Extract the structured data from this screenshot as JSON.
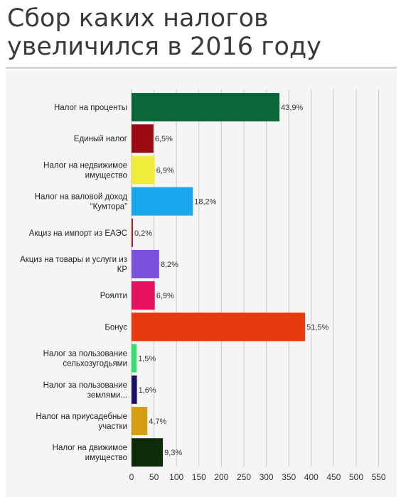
{
  "title": "Сбор каких налогов увеличился в 2016 году",
  "chart_data": {
    "type": "bar",
    "orientation": "horizontal",
    "title": "",
    "xlabel": "",
    "ylabel": "",
    "xlim": [
      0,
      550
    ],
    "xticks": [
      0,
      50,
      100,
      150,
      200,
      250,
      300,
      350,
      400,
      450,
      500,
      550
    ],
    "grid": true,
    "categories": [
      [
        "Налог на проценты"
      ],
      [
        "Единый налог"
      ],
      [
        "Налог на недвижимое",
        "имущество"
      ],
      [
        "Налог на валовой доход",
        "“Кумтора”"
      ],
      [
        "Акциз на импорт из ЕАЭС"
      ],
      [
        "Акциз на товары и услуги из",
        "КР"
      ],
      [
        "Роялти"
      ],
      [
        "Бонус"
      ],
      [
        "Налог за пользование",
        "сельхозугодьями"
      ],
      [
        "Налог за пользование",
        "землями..."
      ],
      [
        "Налог на приусадебные",
        "участки"
      ],
      [
        "Налог на движимое",
        "имущество"
      ]
    ],
    "values": [
      43.9,
      6.5,
      6.9,
      18.2,
      0.2,
      8.2,
      6.9,
      51.5,
      1.5,
      1.6,
      4.7,
      9.3
    ],
    "labels": [
      "43,9%",
      "6,5%",
      "6,9%",
      "18,2%",
      "0,2%",
      "8,2%",
      "6,9%",
      "51,5%",
      "1,5%",
      "1,6%",
      "4,7%",
      "9,3%"
    ],
    "colors": [
      "#0b6638",
      "#9b0a10",
      "#f0ec3c",
      "#19a8ee",
      "#b31b2c",
      "#7a52dc",
      "#e5125f",
      "#e73b0f",
      "#2ee36a",
      "#1c1066",
      "#d5a010",
      "#0b2c06"
    ]
  }
}
